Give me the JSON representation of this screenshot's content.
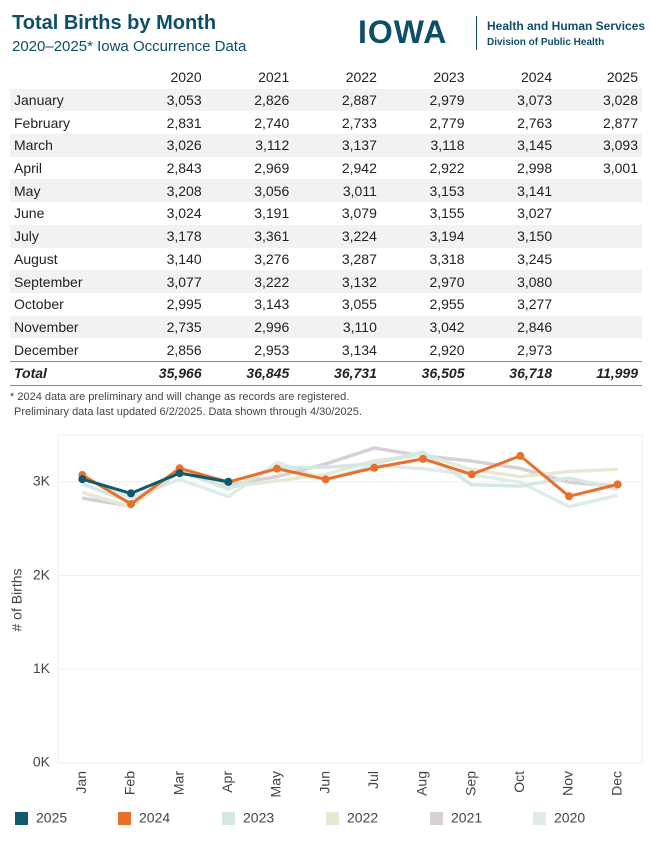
{
  "header": {
    "title": "Total Births by Month",
    "subtitle": "2020–2025* Iowa Occurrence Data",
    "logo": "IOWA",
    "org": "Health and Human Services",
    "division": "Division of Public Health"
  },
  "table": {
    "columns": [
      "2020",
      "2021",
      "2022",
      "2023",
      "2024",
      "2025"
    ],
    "rows": [
      {
        "month": "January",
        "values": [
          "3,053",
          "2,826",
          "2,887",
          "2,979",
          "3,073",
          "3,028"
        ]
      },
      {
        "month": "February",
        "values": [
          "2,831",
          "2,740",
          "2,733",
          "2,779",
          "2,763",
          "2,877"
        ]
      },
      {
        "month": "March",
        "values": [
          "3,026",
          "3,112",
          "3,137",
          "3,118",
          "3,145",
          "3,093"
        ]
      },
      {
        "month": "April",
        "values": [
          "2,843",
          "2,969",
          "2,942",
          "2,922",
          "2,998",
          "3,001"
        ]
      },
      {
        "month": "May",
        "values": [
          "3,208",
          "3,056",
          "3,011",
          "3,153",
          "3,141"
        ]
      },
      {
        "month": "June",
        "values": [
          "3,024",
          "3,191",
          "3,079",
          "3,155",
          "3,027"
        ]
      },
      {
        "month": "July",
        "values": [
          "3,178",
          "3,361",
          "3,224",
          "3,194",
          "3,150"
        ]
      },
      {
        "month": "August",
        "values": [
          "3,140",
          "3,276",
          "3,287",
          "3,318",
          "3,245"
        ]
      },
      {
        "month": "September",
        "values": [
          "3,077",
          "3,222",
          "3,132",
          "2,970",
          "3,080"
        ]
      },
      {
        "month": "October",
        "values": [
          "2,995",
          "3,143",
          "3,055",
          "2,955",
          "3,277"
        ]
      },
      {
        "month": "November",
        "values": [
          "2,735",
          "2,996",
          "3,110",
          "3,042",
          "2,846"
        ]
      },
      {
        "month": "December",
        "values": [
          "2,856",
          "2,953",
          "3,134",
          "2,920",
          "2,973"
        ]
      }
    ],
    "total": {
      "label": "Total",
      "values": [
        "35,966",
        "36,845",
        "36,731",
        "36,505",
        "36,718",
        "11,999"
      ]
    }
  },
  "notes": [
    "* 2024 data are preliminary and will change as records are registered.",
    "Preliminary data last updated 6/2/2025. Data shown through 4/30/2025."
  ],
  "chart_data": {
    "type": "line",
    "y_label": "# of Births",
    "categories": [
      "Jan",
      "Feb",
      "Mar",
      "Apr",
      "May",
      "Jun",
      "Jul",
      "Aug",
      "Sep",
      "Oct",
      "Nov",
      "Dec"
    ],
    "ylim": [
      0,
      3500
    ],
    "yticks": [
      {
        "value": 0,
        "label": "0K"
      },
      {
        "value": 1000,
        "label": "1K"
      },
      {
        "value": 2000,
        "label": "2K"
      },
      {
        "value": 3000,
        "label": "3K"
      }
    ],
    "grid": true,
    "legend": "bottom",
    "series": [
      {
        "name": "2025",
        "color": "#0f5a6e",
        "markers": true,
        "values": [
          3028,
          2877,
          3093,
          3001,
          null,
          null,
          null,
          null,
          null,
          null,
          null,
          null
        ]
      },
      {
        "name": "2024",
        "color": "#e8702a",
        "markers": true,
        "values": [
          3073,
          2763,
          3145,
          2998,
          3141,
          3027,
          3150,
          3245,
          3080,
          3277,
          2846,
          2973
        ]
      },
      {
        "name": "2023",
        "color": "#d3e8e4",
        "markers": false,
        "values": [
          2979,
          2779,
          3118,
          2922,
          3153,
          3155,
          3194,
          3318,
          2970,
          2955,
          3042,
          2920
        ]
      },
      {
        "name": "2022",
        "color": "#e6ead3",
        "markers": false,
        "values": [
          2887,
          2733,
          3137,
          2942,
          3011,
          3079,
          3224,
          3287,
          3132,
          3055,
          3110,
          3134
        ]
      },
      {
        "name": "2021",
        "color": "#d8d0d6",
        "markers": false,
        "values": [
          2826,
          2740,
          3112,
          2969,
          3056,
          3191,
          3361,
          3276,
          3222,
          3143,
          2996,
          2953
        ]
      },
      {
        "name": "2020",
        "color": "#e0ebeb",
        "markers": false,
        "values": [
          3053,
          2831,
          3026,
          2843,
          3208,
          3024,
          3178,
          3140,
          3077,
          2995,
          2735,
          2856
        ]
      }
    ]
  }
}
